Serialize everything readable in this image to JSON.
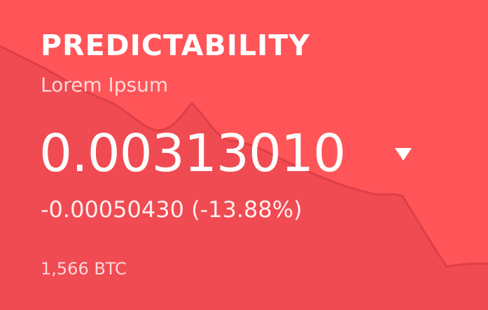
{
  "colors": {
    "card_background": "#ff5558",
    "chart_area": "#f04b52",
    "chart_line": "#dd3f46",
    "text": "#ffffff"
  },
  "card": {
    "title": "PREDICTABILITY",
    "subtitle": "Lorem Ipsum",
    "price": "0.00313010",
    "trend_icon": "triangle-down-icon",
    "change": "-0.00050430 (-13.88%)",
    "volume": "1,566 BTC"
  }
}
